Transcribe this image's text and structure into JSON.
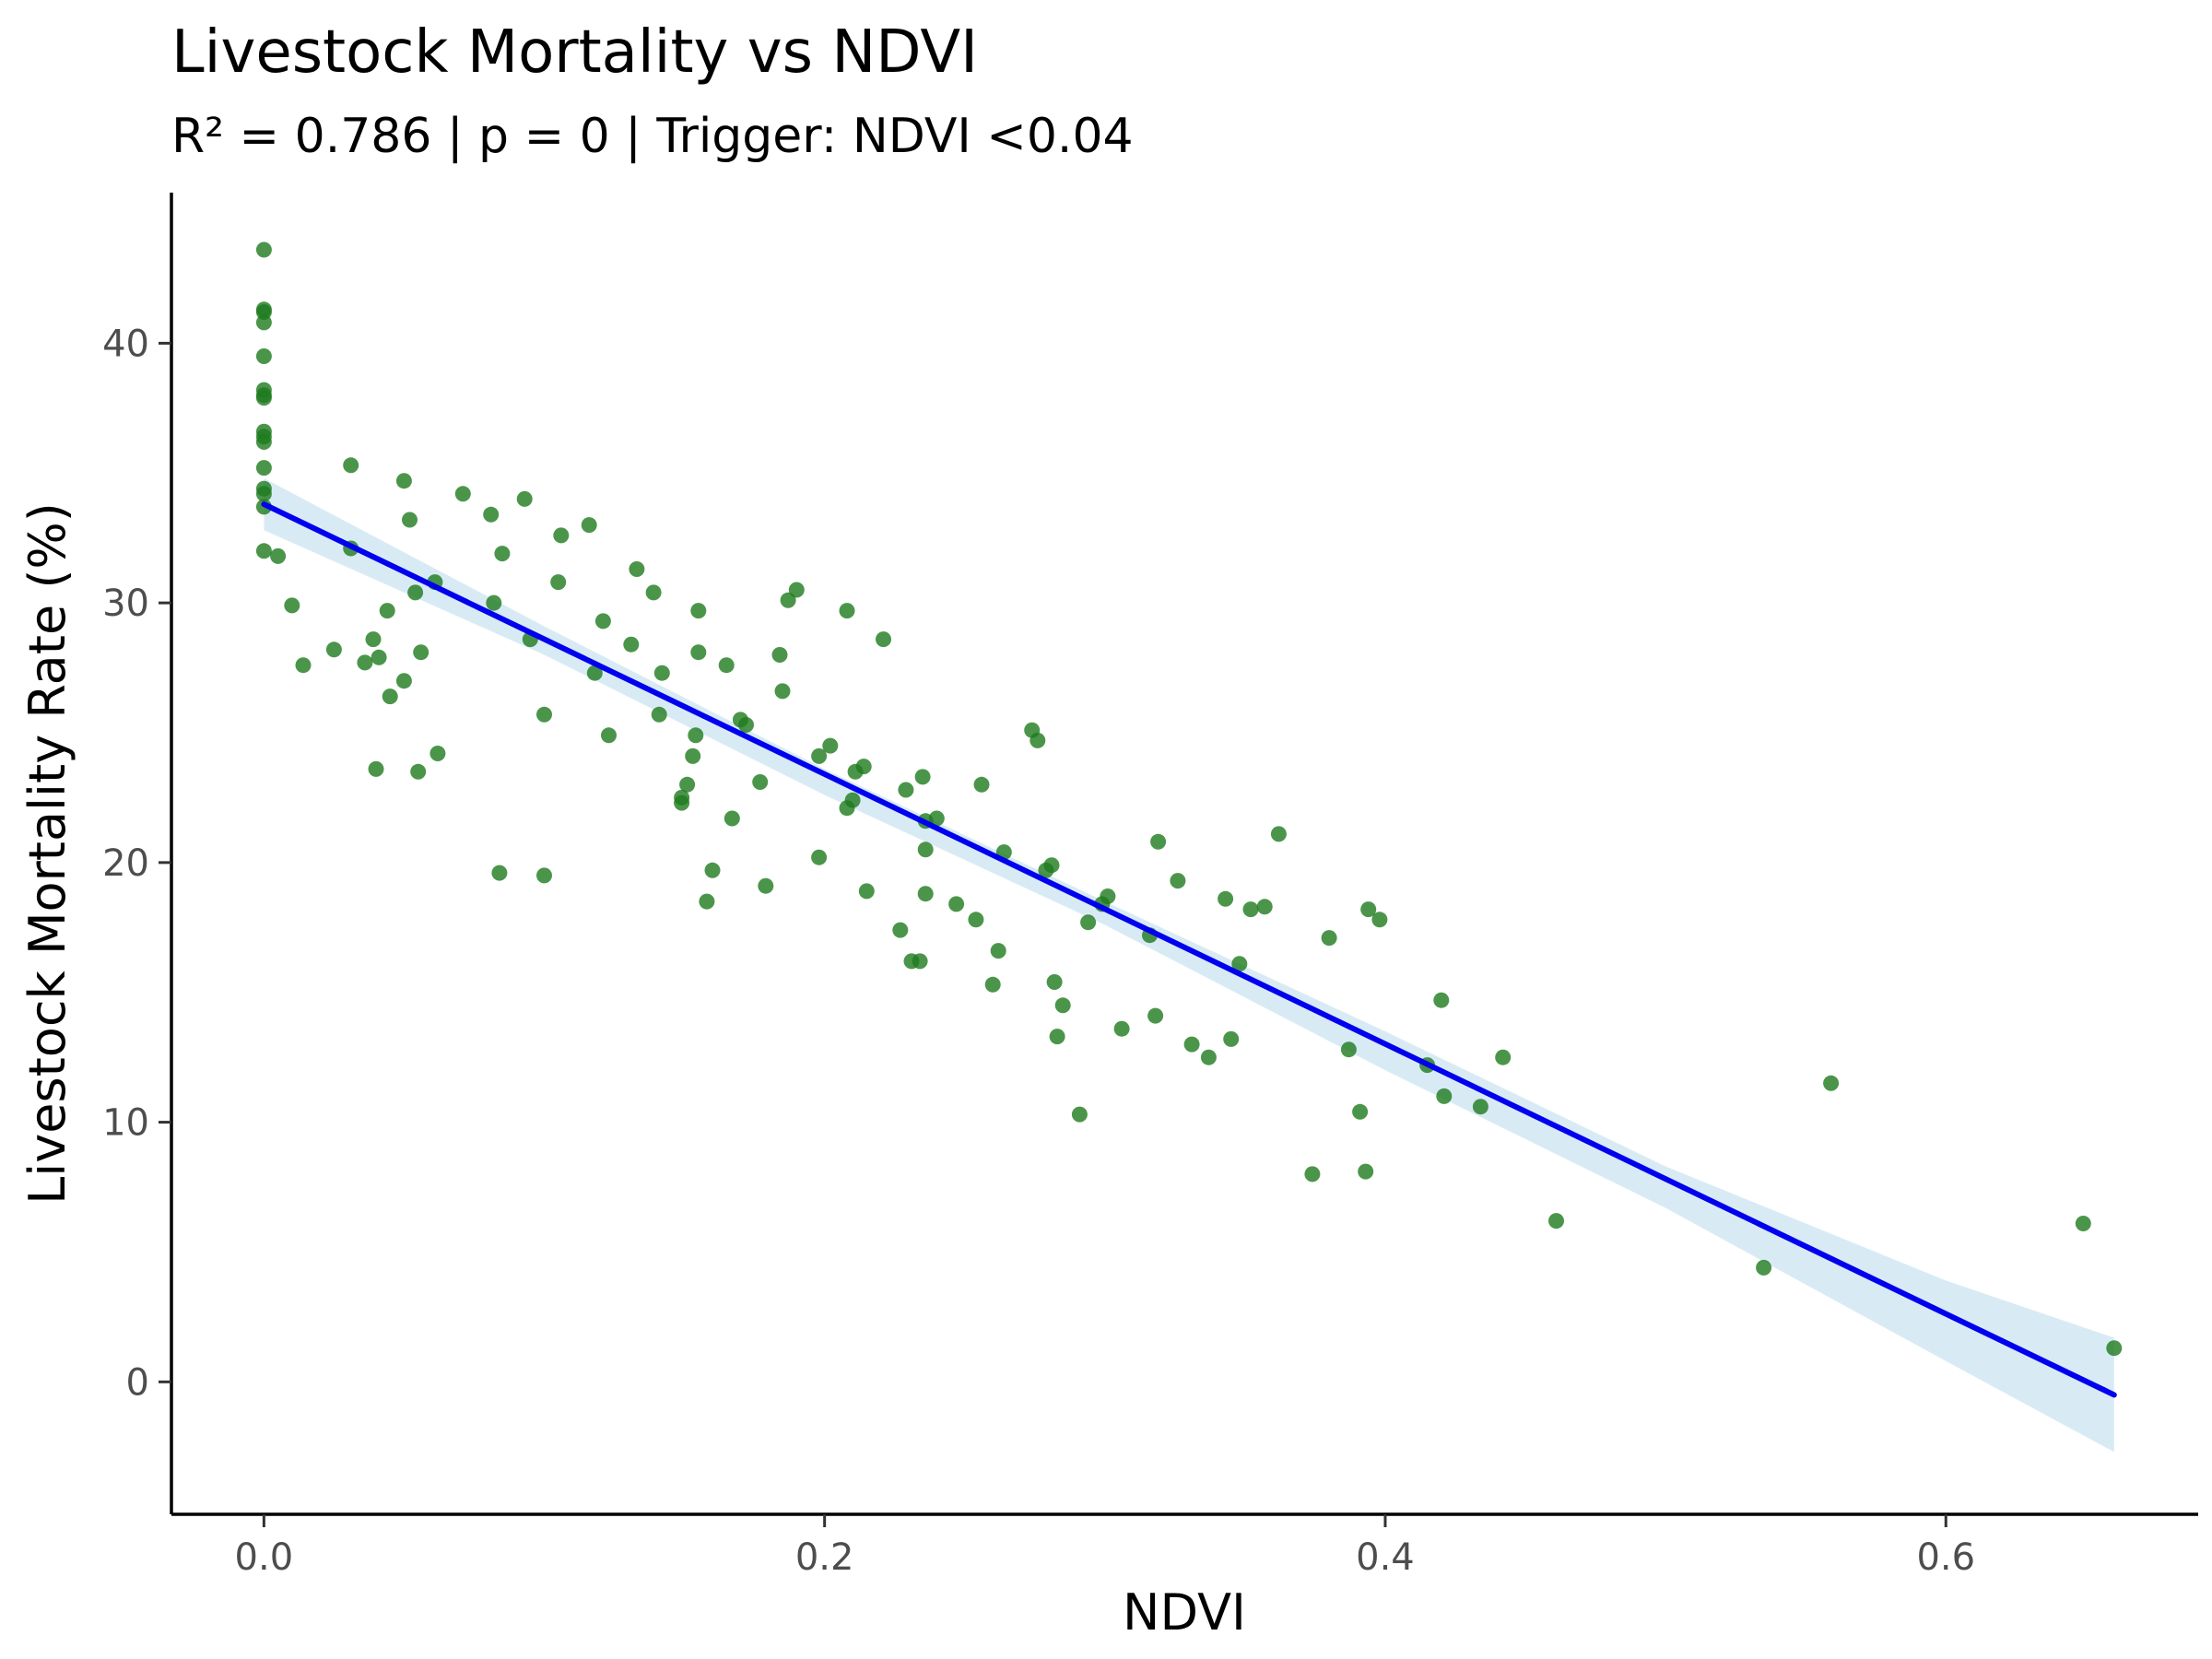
{
  "chart_data": {
    "type": "scatter",
    "title": "Livestock Mortality vs NDVI",
    "subtitle": "R² = 0.786 | p = 0 | Trigger: NDVI <0.04",
    "xlabel": "NDVI",
    "ylabel": "Livestock Mortality Rate (%)",
    "xlim": [
      -0.033,
      0.69
    ],
    "ylim": [
      -5.1,
      45.8
    ],
    "x_ticks": [
      0.0,
      0.2,
      0.4,
      0.6
    ],
    "x_tick_labels": [
      "0.0",
      "0.2",
      "0.4",
      "0.6"
    ],
    "y_ticks": [
      0,
      10,
      20,
      30,
      40
    ],
    "y_tick_labels": [
      "0",
      "10",
      "20",
      "30",
      "40"
    ],
    "grid": false,
    "legend": "none",
    "colors": {
      "points": "#1e7a1e",
      "fit_line": "#0000ee",
      "confidence_band": "#d8ebf5"
    },
    "points": [
      [
        0.0,
        43.6
      ],
      [
        0.0,
        41.3
      ],
      [
        0.0,
        41.2
      ],
      [
        0.0,
        40.8
      ],
      [
        0.0,
        39.5
      ],
      [
        0.0,
        38.2
      ],
      [
        0.0,
        38.0
      ],
      [
        0.0,
        37.9
      ],
      [
        0.0,
        36.6
      ],
      [
        0.0,
        36.4
      ],
      [
        0.0,
        36.2
      ],
      [
        0.0,
        35.2
      ],
      [
        0.0,
        34.4
      ],
      [
        0.0,
        34.2
      ],
      [
        0.0,
        33.7
      ],
      [
        0.0,
        32.0
      ],
      [
        0.005,
        31.8
      ],
      [
        0.01,
        29.9
      ],
      [
        0.014,
        27.6
      ],
      [
        0.025,
        28.2
      ],
      [
        0.031,
        35.3
      ],
      [
        0.031,
        32.1
      ],
      [
        0.036,
        27.7
      ],
      [
        0.039,
        28.6
      ],
      [
        0.04,
        23.6
      ],
      [
        0.041,
        27.9
      ],
      [
        0.044,
        29.7
      ],
      [
        0.045,
        26.4
      ],
      [
        0.05,
        34.7
      ],
      [
        0.05,
        27.0
      ],
      [
        0.052,
        33.2
      ],
      [
        0.054,
        30.4
      ],
      [
        0.055,
        23.5
      ],
      [
        0.056,
        28.1
      ],
      [
        0.061,
        30.8
      ],
      [
        0.062,
        24.2
      ],
      [
        0.071,
        34.2
      ],
      [
        0.081,
        33.4
      ],
      [
        0.082,
        30.0
      ],
      [
        0.084,
        19.6
      ],
      [
        0.085,
        31.9
      ],
      [
        0.093,
        34.0
      ],
      [
        0.095,
        28.6
      ],
      [
        0.1,
        25.7
      ],
      [
        0.1,
        19.5
      ],
      [
        0.105,
        30.8
      ],
      [
        0.106,
        32.6
      ],
      [
        0.116,
        33.0
      ],
      [
        0.118,
        27.3
      ],
      [
        0.121,
        29.3
      ],
      [
        0.123,
        24.9
      ],
      [
        0.131,
        28.4
      ],
      [
        0.133,
        31.3
      ],
      [
        0.139,
        30.4
      ],
      [
        0.141,
        25.7
      ],
      [
        0.142,
        27.3
      ],
      [
        0.149,
        22.3
      ],
      [
        0.149,
        22.5
      ],
      [
        0.151,
        23.0
      ],
      [
        0.153,
        24.1
      ],
      [
        0.154,
        24.9
      ],
      [
        0.155,
        29.7
      ],
      [
        0.155,
        28.1
      ],
      [
        0.158,
        18.5
      ],
      [
        0.16,
        19.7
      ],
      [
        0.165,
        27.6
      ],
      [
        0.167,
        21.7
      ],
      [
        0.17,
        25.5
      ],
      [
        0.172,
        25.3
      ],
      [
        0.177,
        23.1
      ],
      [
        0.179,
        19.1
      ],
      [
        0.184,
        28.0
      ],
      [
        0.185,
        26.6
      ],
      [
        0.187,
        30.1
      ],
      [
        0.19,
        30.5
      ],
      [
        0.198,
        24.1
      ],
      [
        0.198,
        20.2
      ],
      [
        0.202,
        24.5
      ],
      [
        0.208,
        29.7
      ],
      [
        0.208,
        22.1
      ],
      [
        0.21,
        22.4
      ],
      [
        0.211,
        23.5
      ],
      [
        0.214,
        23.7
      ],
      [
        0.215,
        18.9
      ],
      [
        0.221,
        28.6
      ],
      [
        0.227,
        17.4
      ],
      [
        0.229,
        22.8
      ],
      [
        0.231,
        16.2
      ],
      [
        0.234,
        16.2
      ],
      [
        0.235,
        23.3
      ],
      [
        0.236,
        20.5
      ],
      [
        0.236,
        21.6
      ],
      [
        0.236,
        18.8
      ],
      [
        0.24,
        21.7
      ],
      [
        0.247,
        18.4
      ],
      [
        0.254,
        17.8
      ],
      [
        0.256,
        23.0
      ],
      [
        0.26,
        15.3
      ],
      [
        0.262,
        16.6
      ],
      [
        0.264,
        20.4
      ],
      [
        0.274,
        25.1
      ],
      [
        0.276,
        24.7
      ],
      [
        0.279,
        19.7
      ],
      [
        0.281,
        19.9
      ],
      [
        0.282,
        15.4
      ],
      [
        0.283,
        13.3
      ],
      [
        0.285,
        14.5
      ],
      [
        0.291,
        10.3
      ],
      [
        0.294,
        17.7
      ],
      [
        0.299,
        18.4
      ],
      [
        0.301,
        18.7
      ],
      [
        0.306,
        13.6
      ],
      [
        0.316,
        17.2
      ],
      [
        0.318,
        14.1
      ],
      [
        0.319,
        20.8
      ],
      [
        0.326,
        19.3
      ],
      [
        0.331,
        13.0
      ],
      [
        0.337,
        12.5
      ],
      [
        0.343,
        18.6
      ],
      [
        0.345,
        13.2
      ],
      [
        0.348,
        16.1
      ],
      [
        0.352,
        18.2
      ],
      [
        0.357,
        18.3
      ],
      [
        0.362,
        21.1
      ],
      [
        0.374,
        8.0
      ],
      [
        0.38,
        17.1
      ],
      [
        0.387,
        12.8
      ],
      [
        0.391,
        10.4
      ],
      [
        0.393,
        8.1
      ],
      [
        0.394,
        18.2
      ],
      [
        0.398,
        17.8
      ],
      [
        0.415,
        12.2
      ],
      [
        0.42,
        14.7
      ],
      [
        0.421,
        11.0
      ],
      [
        0.434,
        10.6
      ],
      [
        0.442,
        12.5
      ],
      [
        0.461,
        6.2
      ],
      [
        0.535,
        4.4
      ],
      [
        0.559,
        11.5
      ],
      [
        0.649,
        6.1
      ],
      [
        0.66,
        1.3
      ]
    ],
    "fit_line": {
      "x": [
        0.0,
        0.66
      ],
      "y": [
        33.8,
        -0.5
      ]
    },
    "confidence_band": {
      "x": [
        0.0,
        0.1,
        0.2,
        0.3,
        0.4,
        0.5,
        0.6,
        0.66
      ],
      "lower": [
        32.8,
        28.0,
        22.6,
        17.6,
        12.0,
        6.7,
        0.8,
        -2.7
      ],
      "upper": [
        34.8,
        29.1,
        23.6,
        18.5,
        13.5,
        8.3,
        3.9,
        1.7
      ]
    }
  }
}
